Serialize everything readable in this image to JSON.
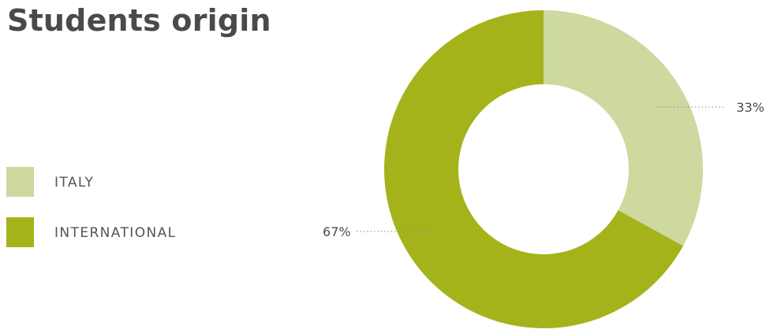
{
  "chart_data": {
    "type": "pie",
    "title": "Students origin",
    "categories": [
      "ITALY",
      "INTERNATIONAL"
    ],
    "values": [
      33,
      67
    ],
    "data_labels": [
      "33%",
      "67%"
    ],
    "colors": [
      "#cdd99f",
      "#a5b31b"
    ],
    "donut": true,
    "legend_position": "left"
  }
}
